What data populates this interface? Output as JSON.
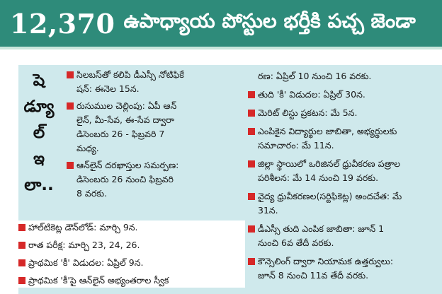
{
  "headline": {
    "number": "12,370",
    "text": "ఉపాధ్యాయ పోస్టుల భర్తీకి పచ్చ జెండా"
  },
  "sidebar_label": [
    "షె",
    "డ్యూ",
    "ల్",
    "ఇ",
    "లా.."
  ],
  "left_items": [
    {
      "lines": [
        "సిలబస్‌తో కలిపి డీఎస్సీ నోటిఫికే",
        "షన్: ఈనెల 15న."
      ]
    },
    {
      "lines": [
        "రుసుముల చెల్లింపు: ఏపీ ఆన్",
        "లైన్, మీ-సేవ, ఈ-సేవ ద్వారా",
        "డిసెంబరు 26 - ఫిబ్రవరి 7",
        "మధ్య."
      ]
    },
    {
      "lines": [
        "ఆన్‌లైన్ దరఖాస్తుల సమర్పణ:",
        "డిసెంబరు 26 నుంచి ఫిబ్రవరి",
        "8 వరకు."
      ]
    },
    {
      "lines": [
        "హాల్‌టికెట్ల డౌన్‌లోడ్: మార్చి 9న."
      ]
    },
    {
      "lines": [
        "రాత పరీక్ష: మార్చి 23, 24, 26."
      ]
    },
    {
      "lines": [
        "ప్రాథమిక 'కీ' విడుదల: ఏప్రిల్ 9న."
      ]
    },
    {
      "lines": [
        "ప్రాథమిక 'కీ'పై ఆన్‌లైన్ అభ్యంతరాల స్వీక"
      ]
    }
  ],
  "right_items": [
    {
      "lines": [
        "రణ: ఏప్రిల్ 10 నుంచి 16 వరకు."
      ],
      "bullet": false
    },
    {
      "lines": [
        "తుది 'కీ' విడుదల: ఏప్రిల్ 30న."
      ],
      "bullet": true
    },
    {
      "lines": [
        "మెరిట్ లిస్టు ప్రకటన: మే 5న."
      ],
      "bullet": true
    },
    {
      "lines": [
        "ఎంపికైన విద్యార్థుల జాబితా, అభ్యర్థులకు",
        "సమాచారం: మే 11న."
      ],
      "bullet": true
    },
    {
      "lines": [
        "జిల్లా స్థాయిలో ఒరిజినల్ ధ్రువీకరణ పత్రాల",
        "పరిశీలన: మే 14 నుంచి 19 వరకు."
      ],
      "bullet": true
    },
    {
      "lines": [
        "వైద్య ధ్రువీకరణల(సర్టిఫికెట్ల) అందచేత: మే",
        "31న."
      ],
      "bullet": true
    },
    {
      "lines": [
        "డీఎస్సీ తుది ఎంపిక జాబితా: జూన్ 1",
        "నుంచి 6వ తేదీ వరకు."
      ],
      "bullet": true
    },
    {
      "lines": [
        "కౌన్సెలింగ్ ద్వారా నియామక ఉత్తర్వులు:",
        "జూన్ 8 నుంచి 11వ తేదీ వరకు."
      ],
      "bullet": true
    }
  ],
  "colors": {
    "headline_bg": "#2e8b7a",
    "panel_bg": "#cfe9ec",
    "bullet": "#d62828"
  }
}
